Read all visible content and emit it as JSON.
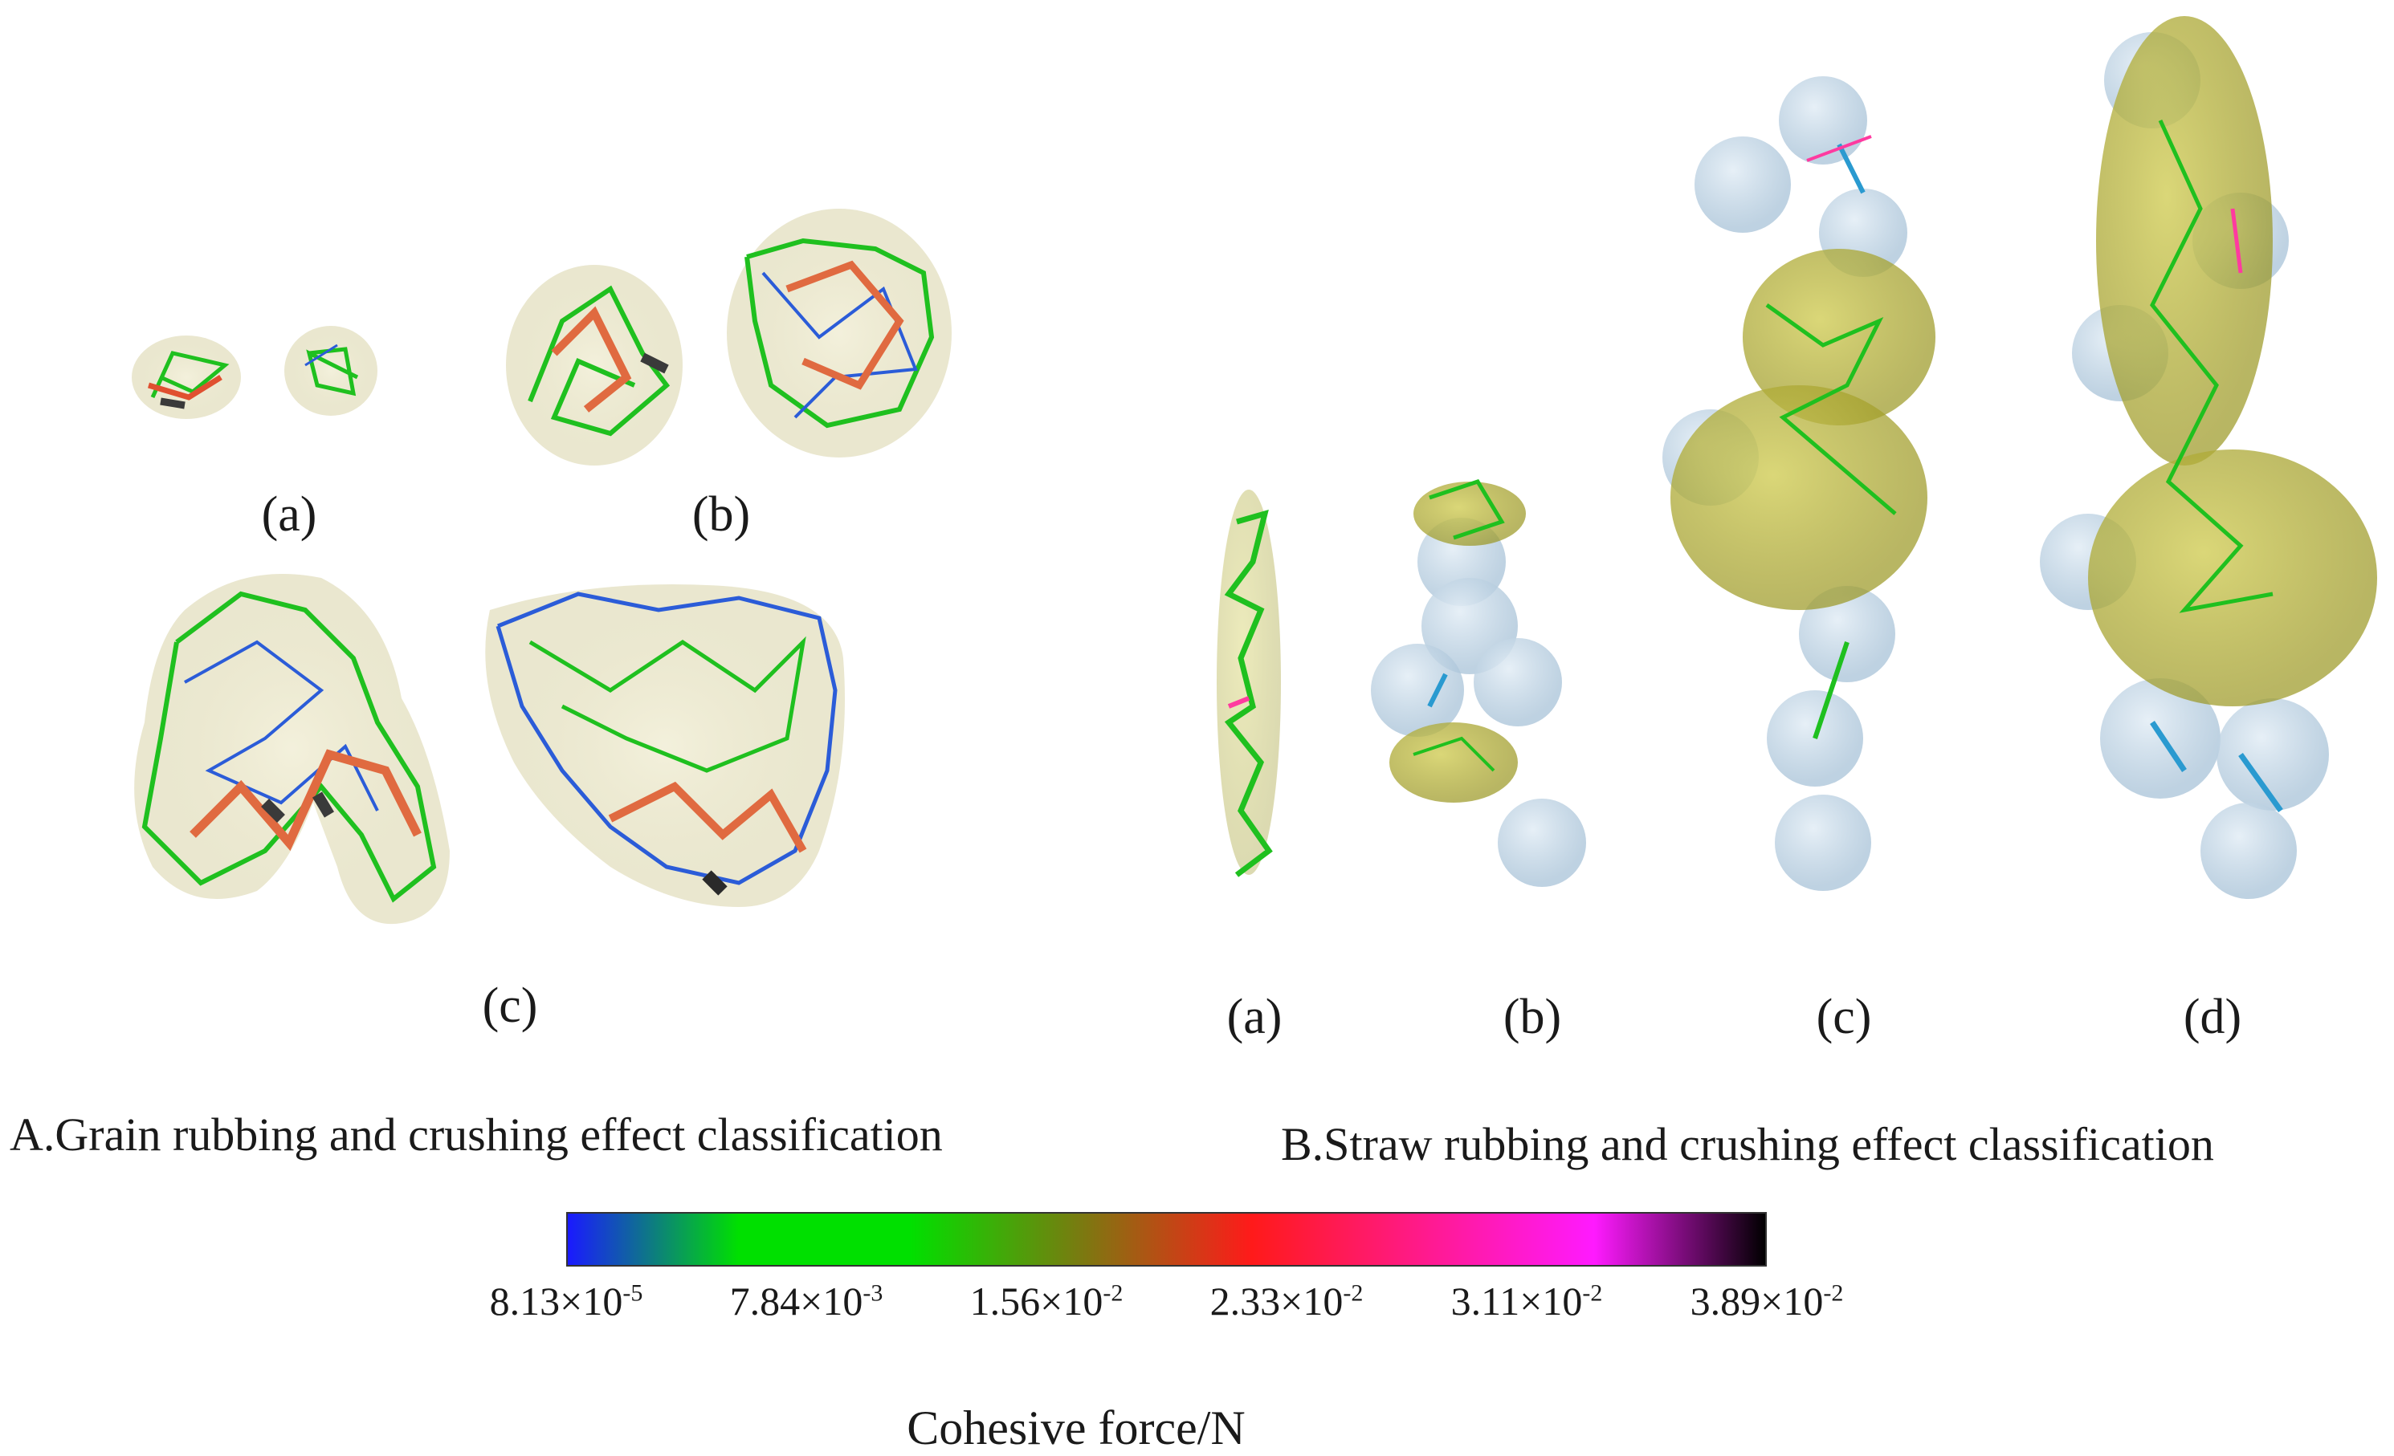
{
  "panel_a": {
    "caption": "A.Grain rubbing and crushing effect classification",
    "labels": {
      "a": "(a)",
      "b": "(b)",
      "c": "(c)"
    }
  },
  "panel_b": {
    "caption": "B.Straw rubbing and crushing effect classification",
    "labels": {
      "a": "(a)",
      "b": "(b)",
      "c": "(c)",
      "d": "(d)"
    }
  },
  "colorbar": {
    "title": "Cohesive force/N",
    "gradient_colors": [
      "#1a1aff",
      "#00e000",
      "#00e000",
      "#7a7a10",
      "#ff1a1a",
      "#ff1a8c",
      "#ff1aff",
      "#000000"
    ],
    "ticks": [
      {
        "mantissa": "8.13",
        "times": "×10",
        "exp": "-5"
      },
      {
        "mantissa": "7.84",
        "times": "×10",
        "exp": "-3"
      },
      {
        "mantissa": "1.56",
        "times": "×10",
        "exp": "-2"
      },
      {
        "mantissa": "2.33",
        "times": "×10",
        "exp": "-2"
      },
      {
        "mantissa": "3.11",
        "times": "×10",
        "exp": "-2"
      },
      {
        "mantissa": "3.89",
        "times": "×10",
        "exp": "-2"
      }
    ]
  }
}
